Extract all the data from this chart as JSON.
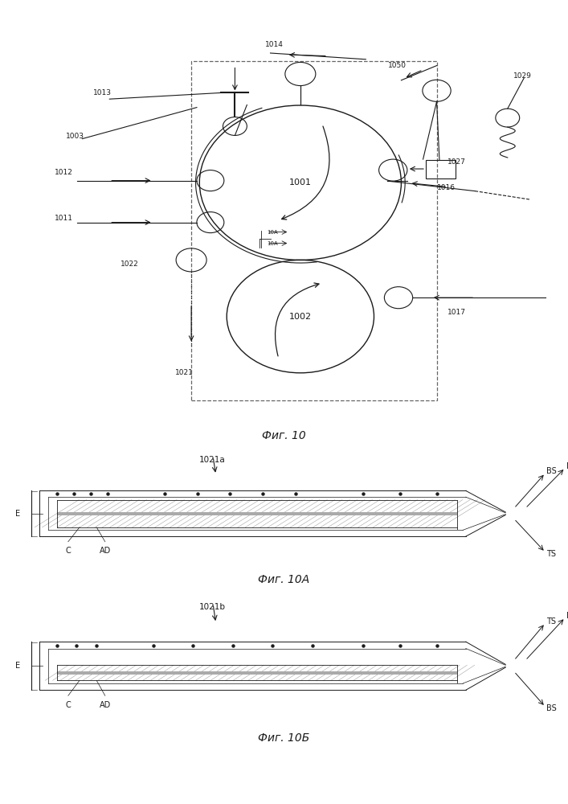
{
  "bg_color": "#ffffff",
  "fig_width": 7.07,
  "fig_height": 10.0,
  "fig10_caption": "Фиг. 10",
  "fig10A_caption": "Фиг. 10А",
  "fig10B_caption": "Фиг. 10Б",
  "dark": "#1a1a1a",
  "gray": "#666666"
}
